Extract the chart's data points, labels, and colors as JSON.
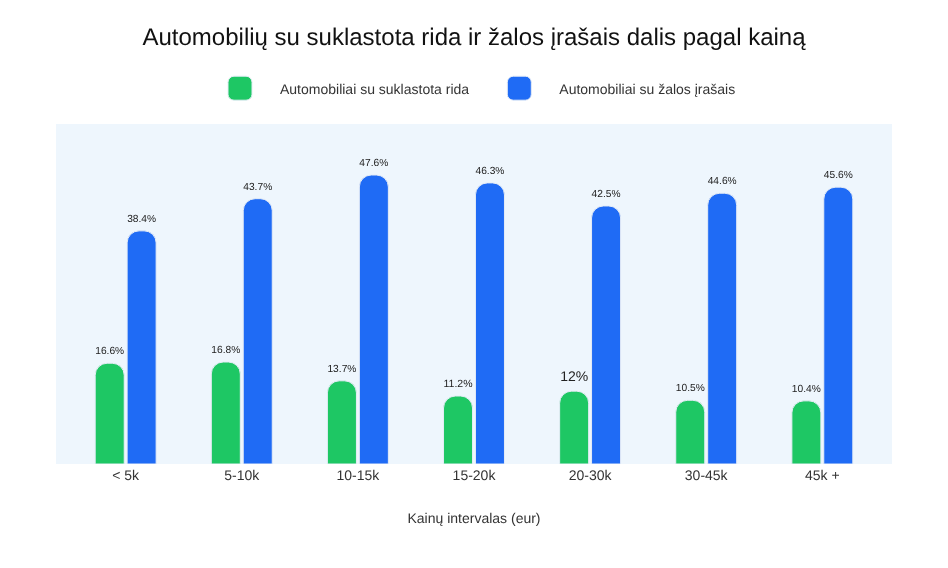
{
  "chart_data": {
    "type": "bar",
    "title": "Automobilių su suklastota rida ir žalos įrašais dalis pagal kainą",
    "xlabel": "Kainų intervalas (eur)",
    "categories": [
      "< 5k",
      "5-10k",
      "10-15k",
      "15-20k",
      "20-30k",
      "30-45k",
      "45k +"
    ],
    "series": [
      {
        "name": "Automobiliai su suklastota rida",
        "color": "#1ec764",
        "values": [
          16.6,
          16.8,
          13.7,
          11.2,
          12,
          10.5,
          10.4
        ],
        "value_labels": [
          "16.6%",
          "16.8%",
          "13.7%",
          "11.2%",
          "12%",
          "10.5%",
          "10.4%"
        ]
      },
      {
        "name": "Automobiliai su žalos įrašais",
        "color": "#1f6bf5",
        "values": [
          38.4,
          43.7,
          47.6,
          46.3,
          42.5,
          44.6,
          45.6
        ],
        "value_labels": [
          "38.4%",
          "43.7%",
          "47.6%",
          "46.3%",
          "42.5%",
          "44.6%",
          "45.6%"
        ]
      }
    ],
    "legend": "top",
    "grid": false
  }
}
